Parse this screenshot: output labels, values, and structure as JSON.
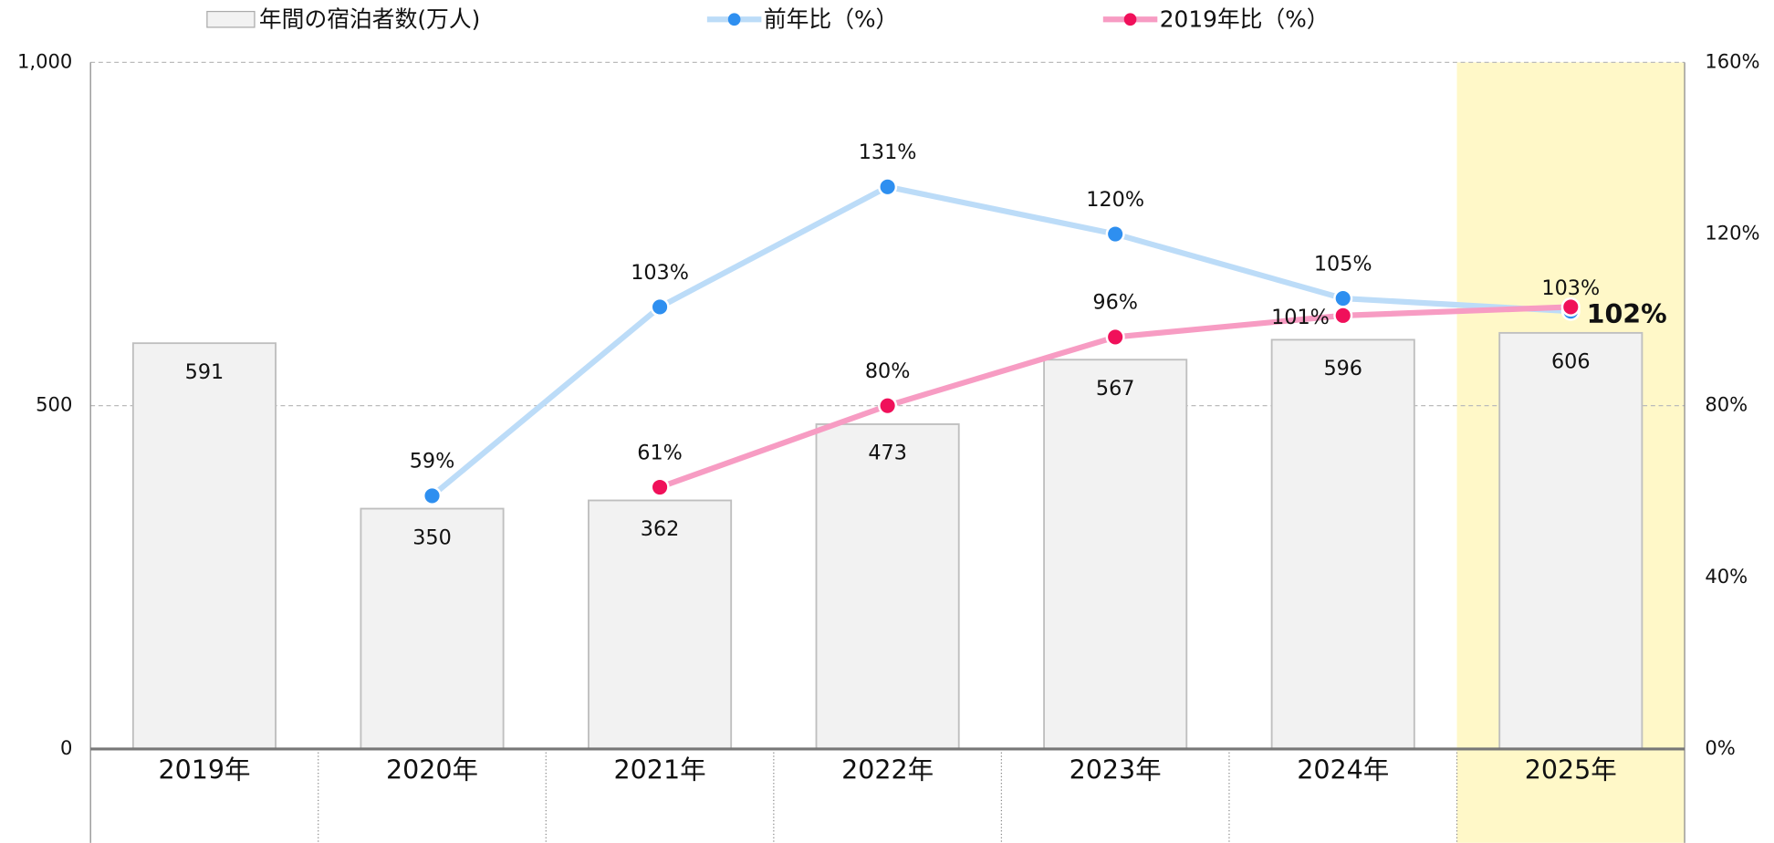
{
  "chart_data": {
    "type": "bar",
    "categories": [
      "2019年",
      "2020年",
      "2021年",
      "2022年",
      "2023年",
      "2024年",
      "2025年"
    ],
    "series": [
      {
        "name": "年間の宿泊者数(万人)",
        "color": "#f2f2f2",
        "type": "bar",
        "values": [
          591,
          350,
          362,
          473,
          567,
          596,
          606
        ]
      },
      {
        "name": "前年比（%）",
        "color": "#bcdcf8",
        "marker_color": "#2e8ff0",
        "type": "line",
        "axis": "y2",
        "values": [
          null,
          59,
          103,
          131,
          120,
          105,
          102
        ],
        "value_labels": [
          null,
          "59%",
          "103%",
          "131%",
          "120%",
          "105%",
          "102%"
        ]
      },
      {
        "name": "2019年比（%）",
        "color": "#f79cc3",
        "marker_color": "#f0105a",
        "type": "line",
        "axis": "y2",
        "values": [
          null,
          null,
          61,
          80,
          96,
          101,
          103
        ],
        "value_labels": [
          null,
          null,
          "61%",
          "80%",
          "96%",
          "101%",
          "103%"
        ]
      }
    ],
    "ylim": [
      0,
      1000
    ],
    "yticks": [
      0,
      500,
      {
        "value": 1000,
        "label": "1,000"
      }
    ],
    "y2lim": [
      0,
      160
    ],
    "y2ticks": [
      {
        "value": 0,
        "label": "0%"
      },
      {
        "value": 40,
        "label": "40%"
      },
      {
        "value": 80,
        "label": "80%"
      },
      {
        "value": 120,
        "label": "120%"
      },
      {
        "value": 160,
        "label": "160%"
      }
    ],
    "grid": true,
    "legend": "top",
    "highlight": {
      "category_index": 6,
      "color": "#fff8c8"
    }
  }
}
